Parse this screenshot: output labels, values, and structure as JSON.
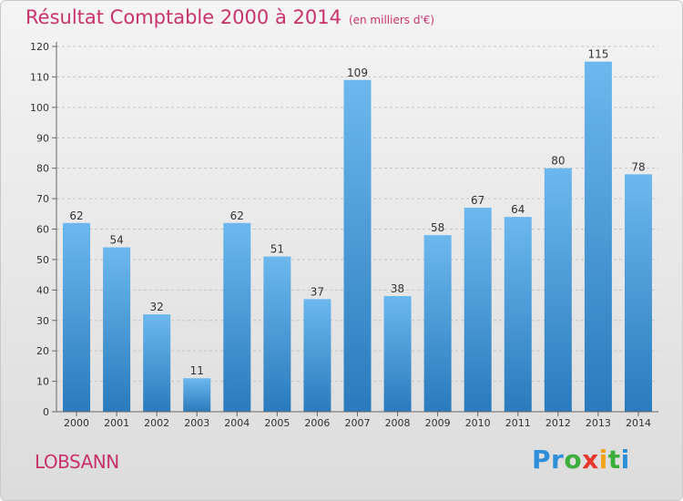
{
  "header": {
    "title": "Résultat Comptable 2000 à 2014",
    "subtitle": "(en milliers d'€)"
  },
  "footer": {
    "town": "LOBSANN",
    "logo_letters": [
      {
        "char": "P",
        "color": "#2f8fd8"
      },
      {
        "char": "r",
        "color": "#2f8fd8"
      },
      {
        "char": "o",
        "color": "#3cae3c"
      },
      {
        "char": "x",
        "color": "#e8382e"
      },
      {
        "char": "i",
        "color": "#f3a41c"
      },
      {
        "char": "t",
        "color": "#3cae3c"
      },
      {
        "char": "i",
        "color": "#2f8fd8"
      }
    ]
  },
  "chart_data": {
    "type": "bar",
    "categories": [
      "2000",
      "2001",
      "2002",
      "2003",
      "2004",
      "2005",
      "2006",
      "2007",
      "2008",
      "2009",
      "2010",
      "2011",
      "2012",
      "2013",
      "2014"
    ],
    "values": [
      62,
      54,
      32,
      11,
      62,
      51,
      37,
      109,
      38,
      58,
      67,
      64,
      80,
      115,
      78
    ],
    "ylim": [
      0,
      120
    ],
    "yticks": [
      0,
      10,
      20,
      30,
      40,
      50,
      60,
      70,
      80,
      90,
      100,
      110,
      120
    ],
    "grid": true,
    "bar_color_top": "#6cb8ee",
    "bar_color_bottom": "#2a7bbd"
  }
}
